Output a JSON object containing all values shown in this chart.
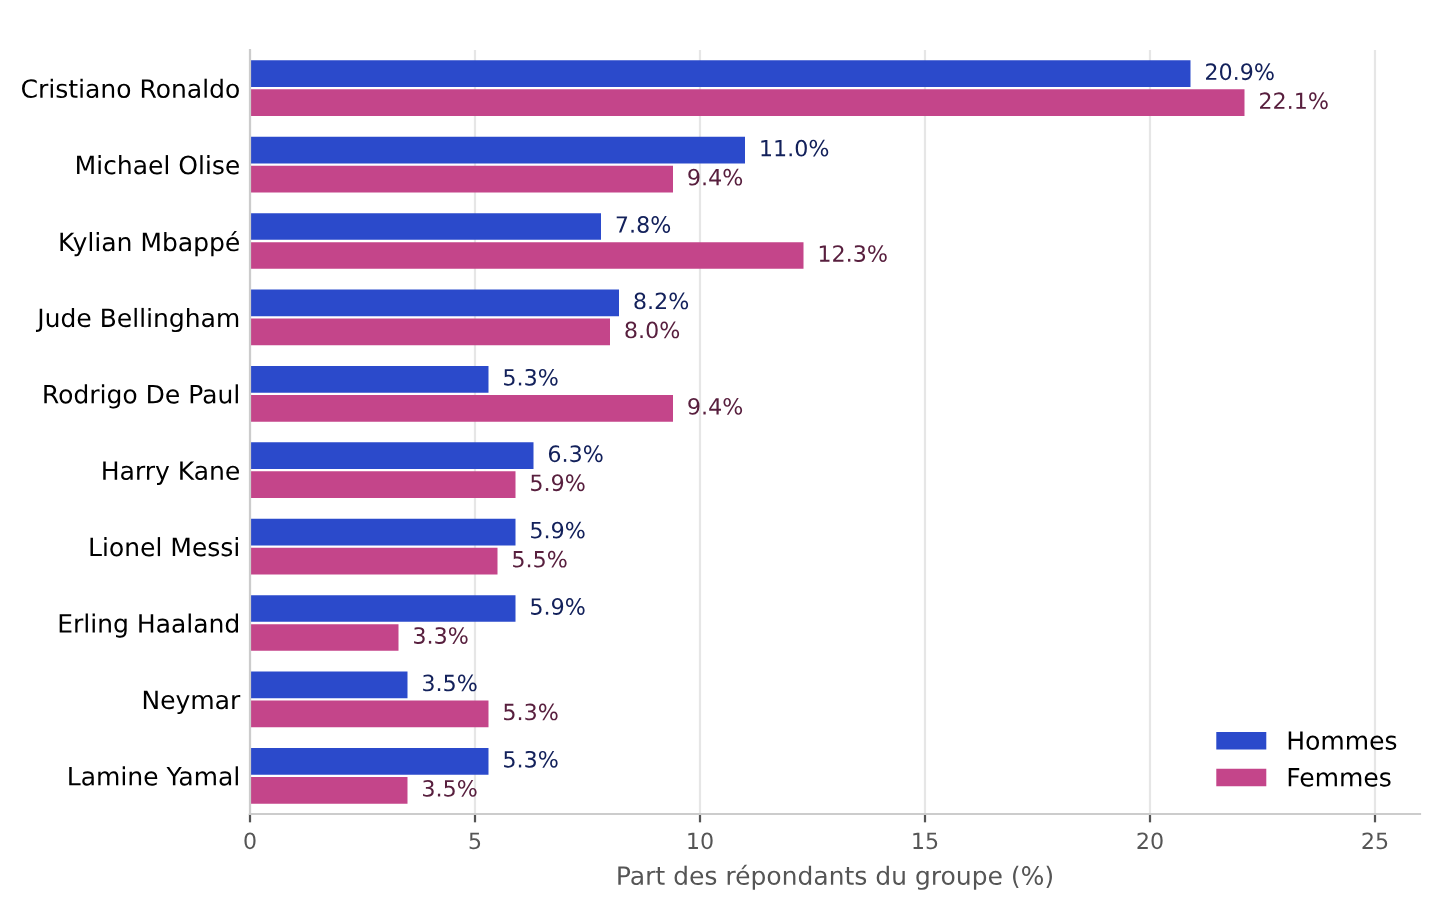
{
  "chart_data": {
    "type": "bar",
    "orientation": "horizontal",
    "xlabel": "Part des répondants du groupe (%)",
    "categories": [
      "Cristiano Ronaldo",
      "Michael Olise",
      "Kylian Mbappé",
      "Jude Bellingham",
      "Rodrigo De Paul",
      "Harry Kane",
      "Lionel Messi",
      "Erling Haaland",
      "Neymar",
      "Lamine Yamal"
    ],
    "series": [
      {
        "name": "Hommes",
        "color": "#2b4acb",
        "values": [
          20.9,
          11.0,
          7.8,
          8.2,
          5.3,
          6.3,
          5.9,
          5.9,
          3.5,
          5.3
        ],
        "value_labels": [
          "20.9%",
          "11.0%",
          "7.8%",
          "8.2%",
          "5.3%",
          "6.3%",
          "5.9%",
          "5.9%",
          "3.5%",
          "5.3%"
        ]
      },
      {
        "name": "Femmes",
        "color": "#c4458a",
        "values": [
          22.1,
          9.4,
          12.3,
          8.0,
          9.4,
          5.9,
          5.5,
          3.3,
          5.3,
          3.5
        ],
        "value_labels": [
          "22.1%",
          "9.4%",
          "12.3%",
          "8.0%",
          "9.4%",
          "5.9%",
          "5.5%",
          "3.3%",
          "5.3%",
          "3.5%"
        ]
      }
    ],
    "xlim": [
      0,
      26
    ],
    "xticks": [
      0,
      5,
      10,
      15,
      20,
      25
    ],
    "grid": "x",
    "legend": "bottom right"
  }
}
